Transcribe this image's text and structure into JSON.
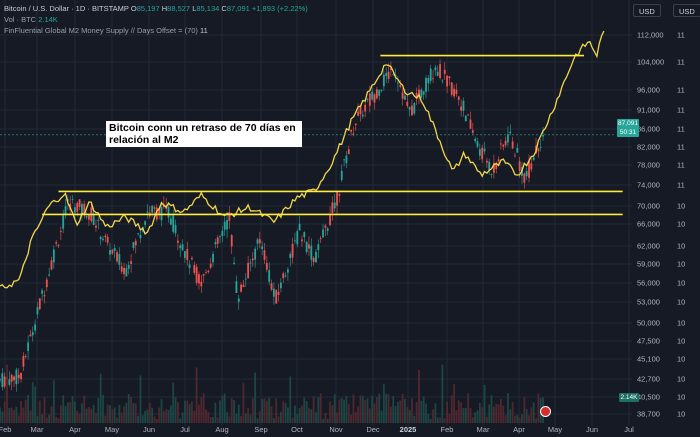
{
  "header": {
    "symbol": "Bitcoin / U.S. Dollar · 1D · BITSTAMP",
    "o_label": "O",
    "o_value": "85,197",
    "h_label": "H",
    "h_value": "88,527",
    "l_label": "L",
    "l_value": "85,134",
    "c_label": "C",
    "c_value": "87,091",
    "change": "+1,893 (+2.22%)",
    "volume_label": "Vol · BTC",
    "volume_value": "2.14K",
    "indicator_label": "FinFluential Global M2 Money Supply // Days Offset = (70)",
    "indicator_value": "11"
  },
  "annotation": "Bitcoin conn un retraso de 70 días en relación al M2",
  "currency_buttons": [
    "USD",
    "USD"
  ],
  "price_tag": {
    "price": "87,091",
    "countdown": "50:31"
  },
  "volume_tag": "2.14K",
  "colors": {
    "background": "#161a25",
    "up": "#26a69a",
    "down": "#ef5350",
    "m2_line": "#f2d64b",
    "support_lines": "#ffeb3b",
    "grid": "#232836"
  },
  "chart_data": {
    "type": "line",
    "title": "",
    "x_ticks": [
      "Feb",
      "Mar",
      "Apr",
      "May",
      "Jun",
      "Jul",
      "Aug",
      "Sep",
      "Oct",
      "Nov",
      "Dec",
      "2025",
      "Feb",
      "Mar",
      "Apr",
      "May",
      "Jun",
      "Jul"
    ],
    "left_axis_labels": [
      "112,000",
      "104,000",
      "96,000",
      "91,000",
      "86,000",
      "82,000",
      "78,000",
      "74,000",
      "70,000",
      "66,000",
      "62,000",
      "59,000",
      "56,000",
      "53,000",
      "50,000",
      "47,500",
      "45,100",
      "42,700",
      "40,500",
      "38,700"
    ],
    "right_axis_labels": [
      "11",
      "11",
      "11",
      "11",
      "11",
      "11",
      "11",
      "11",
      "10",
      "10",
      "10",
      "10",
      "10",
      "10",
      "10",
      "10",
      "10",
      "10",
      "10",
      "10"
    ],
    "ylim": [
      37500,
      124000
    ],
    "log_scale": true,
    "support_levels": [
      {
        "from": "2024-03-05",
        "to": "2025-06-30",
        "value": 73800
      },
      {
        "from": "2024-02-20",
        "to": "2025-06-30",
        "value": 69000
      },
      {
        "from": "2024-12-05",
        "to": "2025-05-28",
        "value": 109800
      }
    ],
    "series": [
      {
        "name": "BTC",
        "kind": "candlestick",
        "close": [
          [
            "2024-01-15",
            42500
          ],
          [
            "2024-02-01",
            43000
          ],
          [
            "2024-02-15",
            51000
          ],
          [
            "2024-03-01",
            61500
          ],
          [
            "2024-03-14",
            71500
          ],
          [
            "2024-04-01",
            69500
          ],
          [
            "2024-04-15",
            63500
          ],
          [
            "2024-05-01",
            58500
          ],
          [
            "2024-05-20",
            69500
          ],
          [
            "2024-06-07",
            69500
          ],
          [
            "2024-06-24",
            60500
          ],
          [
            "2024-07-05",
            56500
          ],
          [
            "2024-07-29",
            68500
          ],
          [
            "2024-08-05",
            54000
          ],
          [
            "2024-08-25",
            64500
          ],
          [
            "2024-09-06",
            53500
          ],
          [
            "2024-09-27",
            65800
          ],
          [
            "2024-10-10",
            60500
          ],
          [
            "2024-10-29",
            72500
          ],
          [
            "2024-11-13",
            90500
          ],
          [
            "2024-12-05",
            100500
          ],
          [
            "2024-12-17",
            106500
          ],
          [
            "2024-12-30",
            92500
          ],
          [
            "2025-01-21",
            106500
          ],
          [
            "2025-02-10",
            97500
          ],
          [
            "2025-02-26",
            84500
          ],
          [
            "2025-03-11",
            78500
          ],
          [
            "2025-03-25",
            87500
          ],
          [
            "2025-04-08",
            76500
          ],
          [
            "2025-04-20",
            85500
          ],
          [
            "2025-04-24",
            87091
          ]
        ]
      },
      {
        "name": "FinFluential Global M2 Money Supply // Days Offset = (70)",
        "kind": "line",
        "values": [
          [
            "2024-01-15",
            55500
          ],
          [
            "2024-02-01",
            57000
          ],
          [
            "2024-02-10",
            63500
          ],
          [
            "2024-02-25",
            70500
          ],
          [
            "2024-03-10",
            73500
          ],
          [
            "2024-03-20",
            67000
          ],
          [
            "2024-04-01",
            71500
          ],
          [
            "2024-04-15",
            66500
          ],
          [
            "2024-05-01",
            68500
          ],
          [
            "2024-05-20",
            65500
          ],
          [
            "2024-06-01",
            71500
          ],
          [
            "2024-06-20",
            69500
          ],
          [
            "2024-07-05",
            73000
          ],
          [
            "2024-07-25",
            68500
          ],
          [
            "2024-08-15",
            70500
          ],
          [
            "2024-09-05",
            67500
          ],
          [
            "2024-09-25",
            72500
          ],
          [
            "2024-10-10",
            74000
          ],
          [
            "2024-10-25",
            80500
          ],
          [
            "2024-11-10",
            90500
          ],
          [
            "2024-11-25",
            98500
          ],
          [
            "2024-12-10",
            107500
          ],
          [
            "2024-12-25",
            99500
          ],
          [
            "2025-01-10",
            96500
          ],
          [
            "2025-01-25",
            85500
          ],
          [
            "2025-02-05",
            78000
          ],
          [
            "2025-02-15",
            82500
          ],
          [
            "2025-03-01",
            77500
          ],
          [
            "2025-03-20",
            80500
          ],
          [
            "2025-04-01",
            77500
          ],
          [
            "2025-04-15",
            82500
          ],
          [
            "2025-05-01",
            93500
          ],
          [
            "2025-05-20",
            109500
          ],
          [
            "2025-06-01",
            114500
          ],
          [
            "2025-06-08",
            110000
          ],
          [
            "2025-06-15",
            120500
          ]
        ]
      }
    ]
  }
}
